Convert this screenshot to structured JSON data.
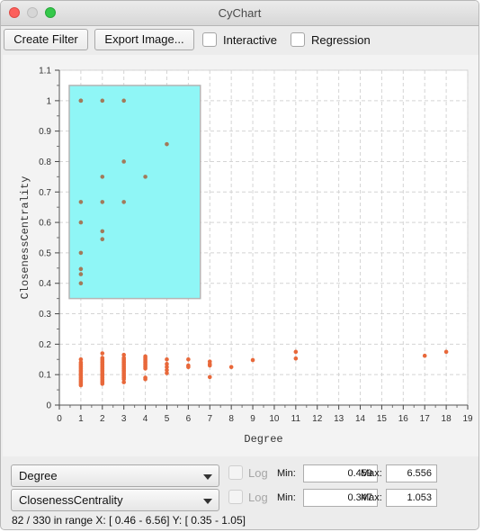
{
  "window": {
    "title": "CyChart"
  },
  "toolbar": {
    "create_filter_label": "Create Filter",
    "export_image_label": "Export Image...",
    "interactive_label": "Interactive",
    "regression_label": "Regression"
  },
  "colors": {
    "points": "#e8683a",
    "selection": "#8ff6f6",
    "selection_border": "#b5b5b5"
  },
  "chart_data": {
    "type": "scatter",
    "xlabel": "Degree",
    "ylabel": "ClosenessCentrality",
    "xlim": [
      0,
      19
    ],
    "ylim": [
      0,
      1.1
    ],
    "xticks": [
      "0",
      "1",
      "2",
      "3",
      "4",
      "5",
      "6",
      "7",
      "8",
      "9",
      "10",
      "11",
      "12",
      "13",
      "14",
      "15",
      "16",
      "17",
      "18",
      "19"
    ],
    "yticks": [
      "0",
      "0.1",
      "0.2",
      "0.3",
      "0.4",
      "0.5",
      "0.6",
      "0.7",
      "0.8",
      "0.9",
      "1",
      "1.1"
    ],
    "grid": true,
    "selection": {
      "x": [
        0.46,
        6.56
      ],
      "y": [
        0.35,
        1.05
      ]
    },
    "points": [
      [
        1,
        1.0
      ],
      [
        1,
        1.0
      ],
      [
        1,
        0.667
      ],
      [
        1,
        0.6
      ],
      [
        1,
        0.5
      ],
      [
        1,
        0.447
      ],
      [
        1,
        0.43
      ],
      [
        1,
        0.4
      ],
      [
        2,
        1.0
      ],
      [
        2,
        0.75
      ],
      [
        2,
        0.667
      ],
      [
        2,
        0.571
      ],
      [
        2,
        0.545
      ],
      [
        3,
        1.0
      ],
      [
        3,
        0.8
      ],
      [
        3,
        0.667
      ],
      [
        4,
        0.75
      ],
      [
        5,
        0.857
      ],
      [
        1,
        0.15
      ],
      [
        1,
        0.14
      ],
      [
        1,
        0.135
      ],
      [
        1,
        0.13
      ],
      [
        1,
        0.125
      ],
      [
        1,
        0.12
      ],
      [
        1,
        0.115
      ],
      [
        1,
        0.11
      ],
      [
        1,
        0.105
      ],
      [
        1,
        0.1
      ],
      [
        1,
        0.095
      ],
      [
        1,
        0.09
      ],
      [
        1,
        0.085
      ],
      [
        1,
        0.08
      ],
      [
        1,
        0.075
      ],
      [
        1,
        0.07
      ],
      [
        1,
        0.065
      ],
      [
        2,
        0.17
      ],
      [
        2,
        0.155
      ],
      [
        2,
        0.15
      ],
      [
        2,
        0.145
      ],
      [
        2,
        0.14
      ],
      [
        2,
        0.135
      ],
      [
        2,
        0.13
      ],
      [
        2,
        0.125
      ],
      [
        2,
        0.12
      ],
      [
        2,
        0.115
      ],
      [
        2,
        0.11
      ],
      [
        2,
        0.105
      ],
      [
        2,
        0.1
      ],
      [
        2,
        0.095
      ],
      [
        2,
        0.09
      ],
      [
        2,
        0.085
      ],
      [
        2,
        0.08
      ],
      [
        2,
        0.075
      ],
      [
        2,
        0.07
      ],
      [
        3,
        0.165
      ],
      [
        3,
        0.155
      ],
      [
        3,
        0.15
      ],
      [
        3,
        0.145
      ],
      [
        3,
        0.14
      ],
      [
        3,
        0.135
      ],
      [
        3,
        0.13
      ],
      [
        3,
        0.125
      ],
      [
        3,
        0.12
      ],
      [
        3,
        0.115
      ],
      [
        3,
        0.11
      ],
      [
        3,
        0.105
      ],
      [
        3,
        0.1
      ],
      [
        3,
        0.095
      ],
      [
        3,
        0.09
      ],
      [
        3,
        0.085
      ],
      [
        3,
        0.075
      ],
      [
        4,
        0.16
      ],
      [
        4,
        0.155
      ],
      [
        4,
        0.15
      ],
      [
        4,
        0.145
      ],
      [
        4,
        0.14
      ],
      [
        4,
        0.135
      ],
      [
        4,
        0.13
      ],
      [
        4,
        0.125
      ],
      [
        4,
        0.12
      ],
      [
        4,
        0.09
      ],
      [
        4,
        0.085
      ],
      [
        5,
        0.15
      ],
      [
        5,
        0.135
      ],
      [
        5,
        0.125
      ],
      [
        5,
        0.115
      ],
      [
        5,
        0.105
      ],
      [
        6,
        0.15
      ],
      [
        6,
        0.13
      ],
      [
        6,
        0.125
      ],
      [
        7,
        0.143
      ],
      [
        7,
        0.135
      ],
      [
        7,
        0.13
      ],
      [
        7,
        0.092
      ],
      [
        8,
        0.125
      ],
      [
        9,
        0.148
      ],
      [
        11,
        0.175
      ],
      [
        11,
        0.153
      ],
      [
        17,
        0.162
      ],
      [
        18,
        0.175
      ]
    ]
  },
  "controls": {
    "x_axis": {
      "selected": "Degree",
      "log_label": "Log",
      "min_label": "Min:",
      "min_value": "0.459",
      "max_label": "Max:",
      "max_value": "6.556"
    },
    "y_axis": {
      "selected": "ClosenessCentrality",
      "log_label": "Log",
      "min_label": "Min:",
      "min_value": "0.347",
      "max_label": "Max:",
      "max_value": "1.053"
    }
  },
  "status": {
    "text": "82 / 330 in range X: [ 0.46 - 6.56] Y: [ 0.35 - 1.05]"
  }
}
